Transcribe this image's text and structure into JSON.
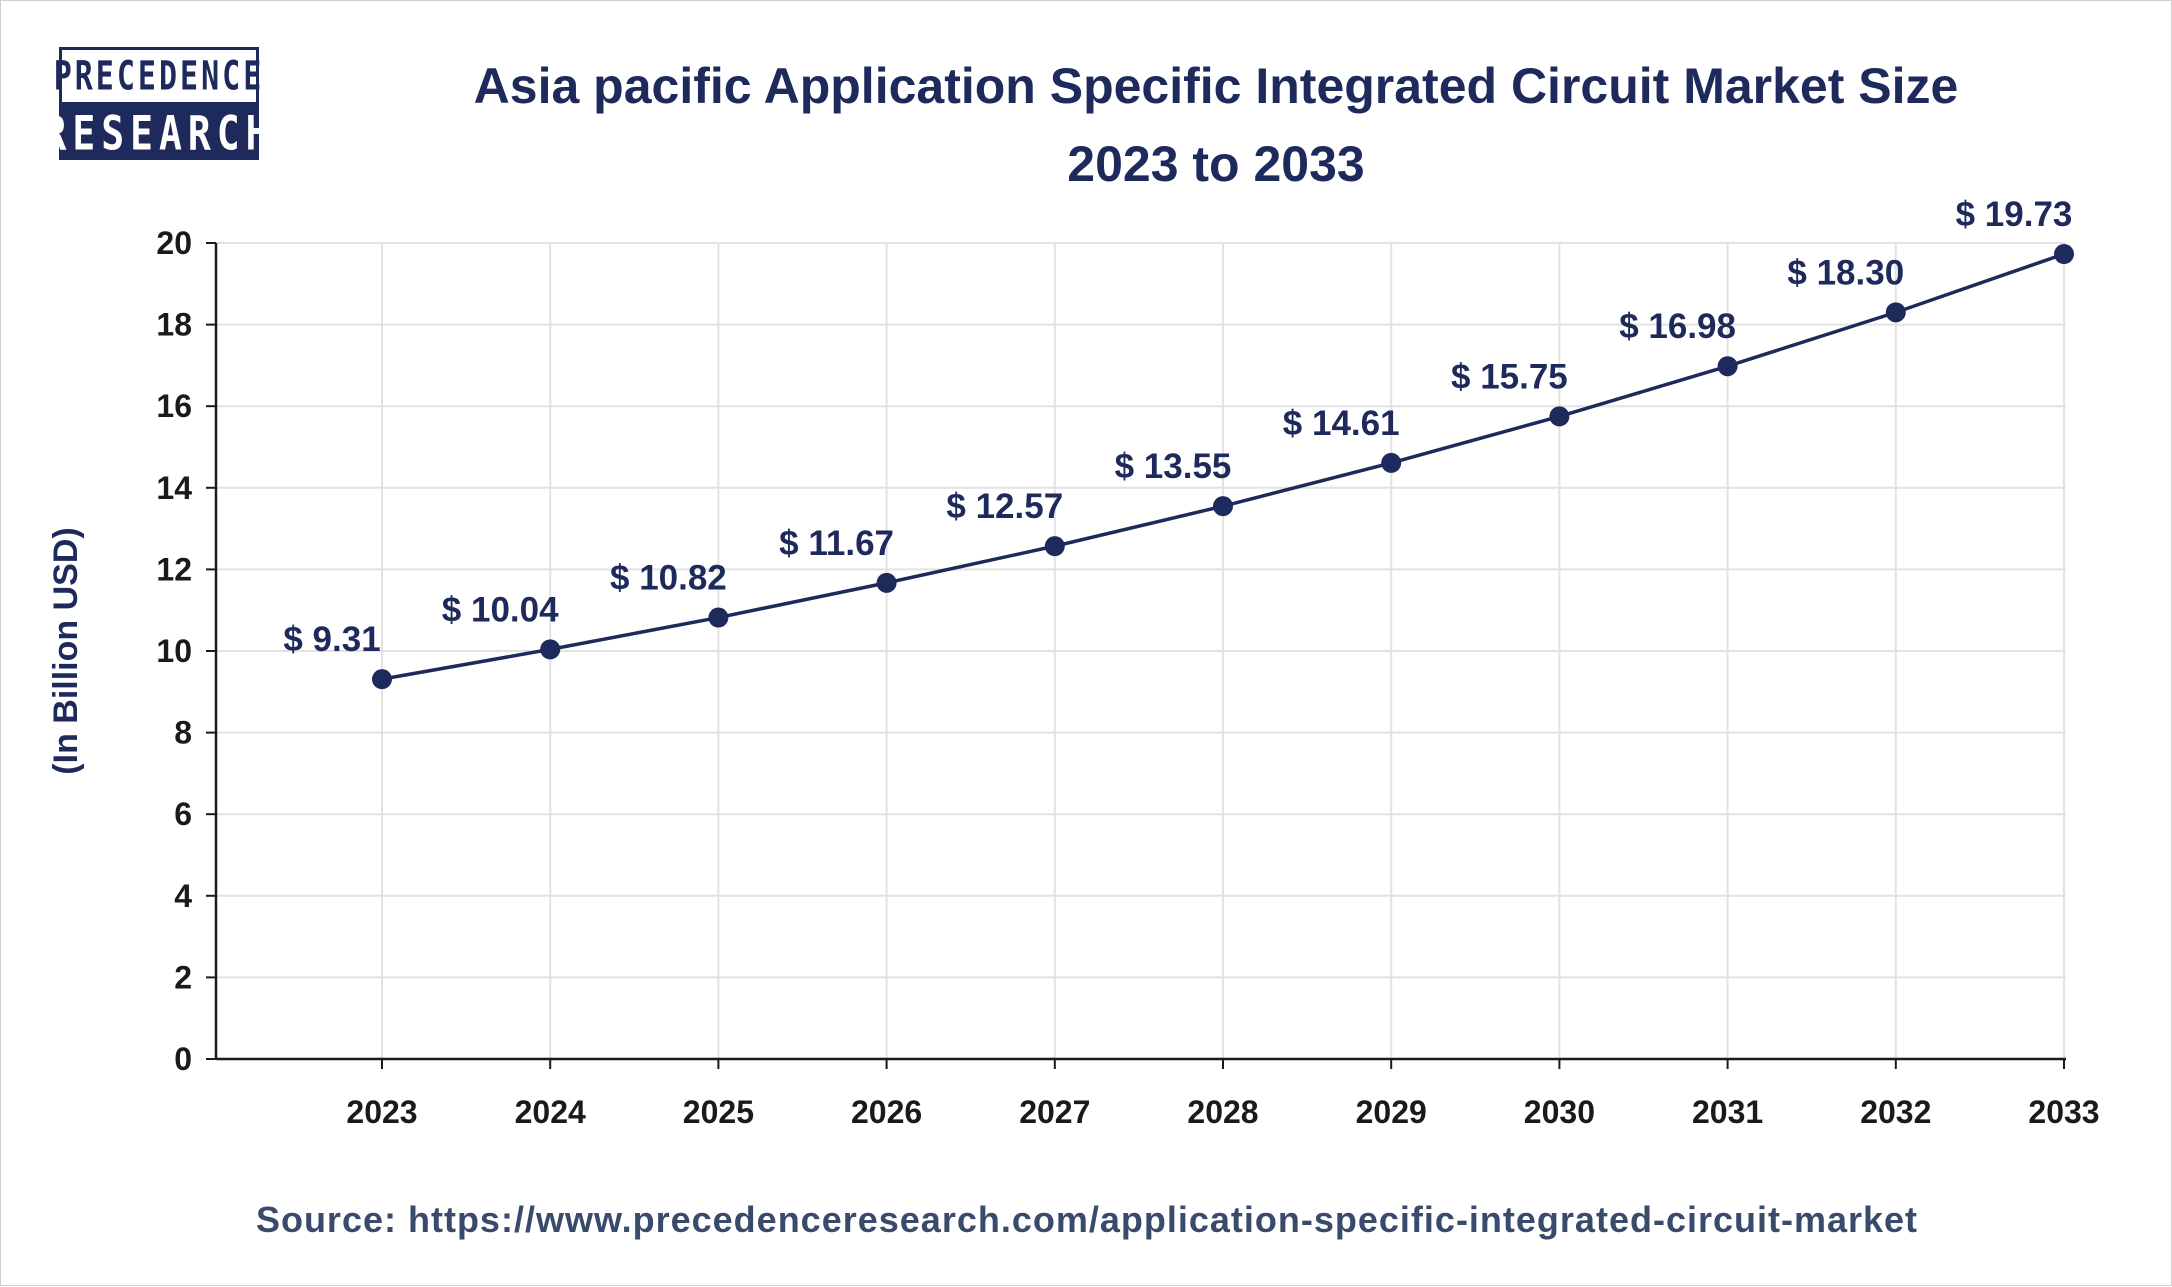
{
  "brand": {
    "logo_line1": "PRECEDENCE",
    "logo_line2": "RESEARCH",
    "primary_color": "#1f2a5c"
  },
  "header": {
    "title_line1": "Asia pacific Application Specific Integrated Circuit Market Size",
    "title_line2": "2023 to 2033"
  },
  "footer": {
    "source": "Source: https://www.precedenceresearch.com/application-specific-integrated-circuit-market"
  },
  "chart_data": {
    "type": "line",
    "title": "Asia pacific Application Specific Integrated Circuit Market Size 2023 to 2033",
    "xlabel": "",
    "ylabel": "(In Billion USD)",
    "ylim": [
      0,
      20
    ],
    "yticks": [
      0,
      2,
      4,
      6,
      8,
      10,
      12,
      14,
      16,
      18,
      20
    ],
    "grid": true,
    "categories": [
      "2023",
      "2024",
      "2025",
      "2026",
      "2027",
      "2028",
      "2029",
      "2030",
      "2031",
      "2032",
      "2033"
    ],
    "series": [
      {
        "name": "Market Size",
        "color": "#1f2a5c",
        "values": [
          9.31,
          10.04,
          10.82,
          11.67,
          12.57,
          13.55,
          14.61,
          15.75,
          16.98,
          18.3,
          19.73
        ],
        "labels": [
          "$ 9.31",
          "$ 10.04",
          "$ 10.82",
          "$ 11.67",
          "$ 12.57",
          "$ 13.55",
          "$ 14.61",
          "$ 15.75",
          "$ 16.98",
          "$ 18.30",
          "$ 19.73"
        ]
      }
    ]
  }
}
